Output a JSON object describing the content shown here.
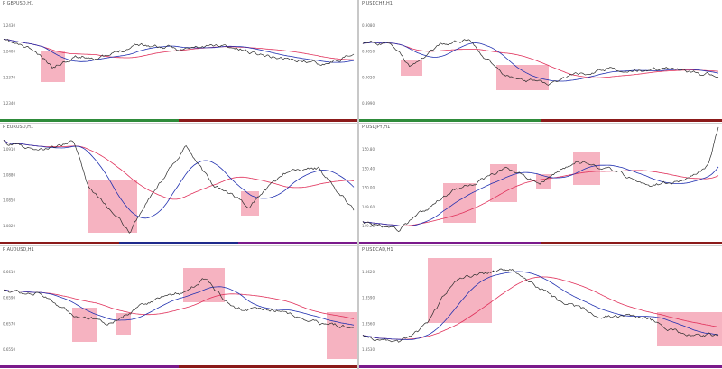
{
  "panels": [
    {
      "title": "P GBPUSD,H1",
      "scale": [
        "1.2430",
        "1.2400",
        "1.2370",
        "1.2340"
      ],
      "boxes": 1
    },
    {
      "title": "P USDCHF,H1",
      "scale": [
        "0.9080",
        "0.9050",
        "0.9020",
        "0.8990"
      ],
      "boxes": 2
    },
    {
      "title": "P EURUSD,H1",
      "scale": [
        "1.0910",
        "1.0880",
        "1.0850",
        "1.0820"
      ],
      "boxes": 2
    },
    {
      "title": "P USDJPY,H1",
      "scale": [
        "150.80",
        "150.40",
        "150.00",
        "149.60",
        "149.20"
      ],
      "boxes": 4
    },
    {
      "title": "P AUDUSD,H1",
      "scale": [
        "0.6610",
        "0.6590",
        "0.6570",
        "0.6550"
      ],
      "boxes": 4
    },
    {
      "title": "P USDCAD,H1",
      "scale": [
        "1.3620",
        "1.3590",
        "1.3560",
        "1.3530"
      ],
      "boxes": 2
    }
  ],
  "colors": {
    "price": "#2b2b2b",
    "ma_fast": "#2030b0",
    "ma_slow": "#e0305a",
    "highlight": "#f4a6b6",
    "bar_green": "#2e8b3a",
    "bar_red": "#8b1a1a",
    "bar_navy": "#1e2a8b",
    "bar_purple": "#7a1a8b"
  }
}
